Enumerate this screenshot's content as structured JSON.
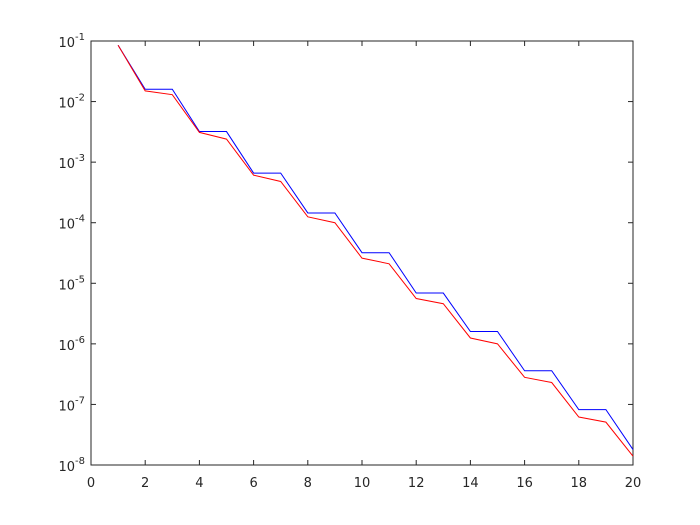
{
  "chart_data": {
    "type": "line",
    "x": [
      1,
      2,
      3,
      4,
      5,
      6,
      7,
      8,
      9,
      10,
      11,
      12,
      13,
      14,
      15,
      16,
      17,
      18,
      19,
      20
    ],
    "series": [
      {
        "color": "#0000ff",
        "values": [
          0.085,
          0.016,
          0.016,
          0.0032,
          0.0032,
          0.00066,
          0.00066,
          0.000145,
          0.000145,
          3.2e-05,
          3.2e-05,
          6.9e-06,
          6.9e-06,
          1.6e-06,
          1.6e-06,
          3.6e-07,
          3.6e-07,
          8.2e-08,
          8.2e-08,
          1.8e-08
        ]
      },
      {
        "color": "#ff0000",
        "values": [
          0.085,
          0.015,
          0.013,
          0.0031,
          0.0024,
          0.00061,
          0.00048,
          0.000125,
          0.0001,
          2.6e-05,
          2.1e-05,
          5.6e-06,
          4.6e-06,
          1.25e-06,
          1e-06,
          2.8e-07,
          2.3e-07,
          6.2e-08,
          5.1e-08,
          1.4e-08
        ]
      }
    ],
    "xlim": [
      0,
      20
    ],
    "xticks": [
      0,
      2,
      4,
      6,
      8,
      10,
      12,
      14,
      16,
      18,
      20
    ],
    "ylim": [
      1e-08,
      0.1
    ],
    "log_y": true,
    "yticks": [
      {
        "value": 1e-08,
        "label": "10^-8"
      },
      {
        "value": 1e-07,
        "label": "10^-7"
      },
      {
        "value": 1e-06,
        "label": "10^-6"
      },
      {
        "value": 1e-05,
        "label": "10^-5"
      },
      {
        "value": 0.0001,
        "label": "10^-4"
      },
      {
        "value": 0.001,
        "label": "10^-3"
      },
      {
        "value": 0.01,
        "label": "10^-2"
      },
      {
        "value": 0.1,
        "label": "10^-1"
      }
    ],
    "grid": false
  }
}
